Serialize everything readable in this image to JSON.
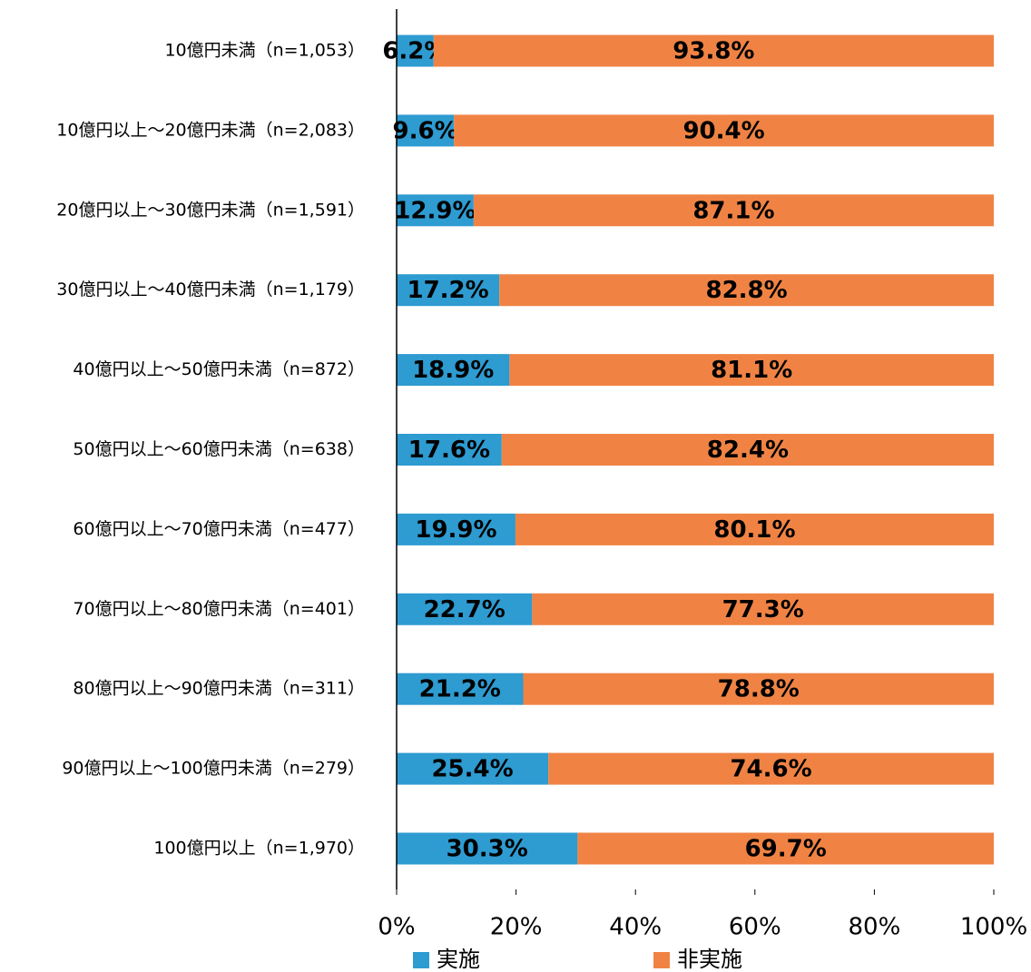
{
  "chart_data": {
    "type": "stacked-bar-horizontal",
    "categories": [
      "10億円未満（n=1,053）",
      "10億円以上～20億円未満（n=2,083）",
      "20億円以上～30億円未満（n=1,591）",
      "30億円以上～40億円未満（n=1,179）",
      "40億円以上～50億円未満（n=872）",
      "50億円以上～60億円未満（n=638）",
      "60億円以上～70億円未満（n=477）",
      "70億円以上～80億円未満（n=401）",
      "80億円以上～90億円未満（n=311）",
      "90億円以上～100億円未満（n=279）",
      "100億円以上（n=1,970）"
    ],
    "series": [
      {
        "name": "実施",
        "color": "#2e9bd1",
        "values": [
          6.2,
          9.6,
          12.9,
          17.2,
          18.9,
          17.6,
          19.9,
          22.7,
          21.2,
          25.4,
          30.3
        ],
        "value_labels": [
          "6.2%",
          "9.6%",
          "12.9%",
          "17.2%",
          "18.9%",
          "17.6%",
          "19.9%",
          "22.7%",
          "21.2%",
          "25.4%",
          "30.3%"
        ]
      },
      {
        "name": "非実施",
        "color": "#f08344",
        "values": [
          93.8,
          90.4,
          87.1,
          82.8,
          81.1,
          82.4,
          80.1,
          77.3,
          78.8,
          74.6,
          69.7
        ],
        "value_labels": [
          "93.8%",
          "90.4%",
          "87.1%",
          "82.8%",
          "81.1%",
          "82.4%",
          "80.1%",
          "77.3%",
          "78.8%",
          "74.6%",
          "69.7%"
        ]
      }
    ],
    "xlim": [
      0,
      100
    ],
    "xticks": [
      {
        "value": 0,
        "label": "0%"
      },
      {
        "value": 20,
        "label": "20%"
      },
      {
        "value": 40,
        "label": "40%"
      },
      {
        "value": 60,
        "label": "60%"
      },
      {
        "value": 80,
        "label": "80%"
      },
      {
        "value": 100,
        "label": "100%"
      }
    ],
    "legend": "bottom"
  }
}
